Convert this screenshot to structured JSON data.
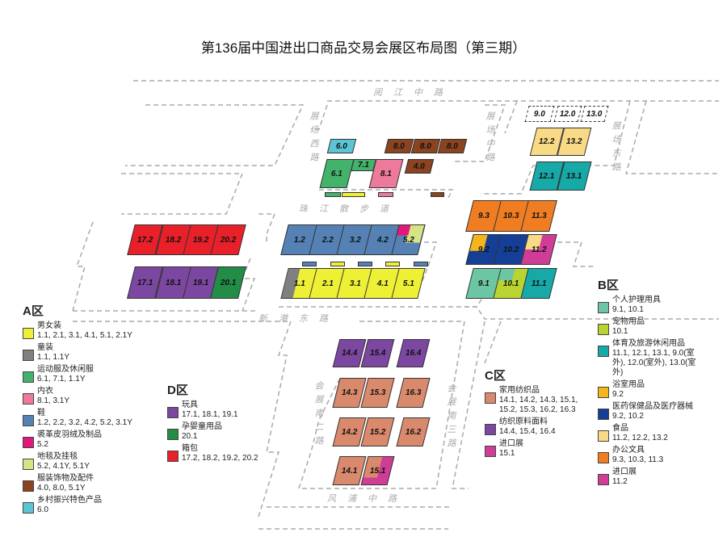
{
  "title": "第136届中国进出口商品交易会展区布局图（第三期）",
  "roads": {
    "north": "阅江中路",
    "west": "展场西路",
    "middle": "展场中路",
    "east": "展场东路",
    "promenade": "珠江散步道",
    "xingang": "新港东路",
    "south2": "会展南二路",
    "south3": "会展南三路",
    "fengpu": "风浦中路"
  },
  "halls": [
    {
      "label": "6.0",
      "colors": [
        "#5bc5d6"
      ]
    },
    {
      "label": "6.1",
      "colors": [
        "#43b26b"
      ]
    },
    {
      "label": "7.1",
      "colors": [
        "#43b26b"
      ]
    },
    {
      "label": "8.1",
      "colors": [
        "#ee7a9b"
      ]
    },
    {
      "label": "8.0",
      "colors": [
        "#8b4320"
      ]
    },
    {
      "label": "8.0",
      "colors": [
        "#8b4320"
      ]
    },
    {
      "label": "8.0",
      "colors": [
        "#8b4320"
      ]
    },
    {
      "label": "4.0",
      "colors": [
        "#8b4320"
      ]
    },
    {
      "label": "1.2",
      "colors": [
        "#5581b5"
      ]
    },
    {
      "label": "2.2",
      "colors": [
        "#5581b5"
      ]
    },
    {
      "label": "3.2",
      "colors": [
        "#5581b5"
      ]
    },
    {
      "label": "4.2",
      "colors": [
        "#5581b5"
      ]
    },
    {
      "label": "5.2",
      "colors": [
        "#5581b5",
        "#e2187a",
        "#d6e484"
      ]
    },
    {
      "label": "1.1",
      "colors": [
        "#808080",
        "#eef035"
      ]
    },
    {
      "label": "2.1",
      "colors": [
        "#eef035"
      ]
    },
    {
      "label": "3.1",
      "colors": [
        "#eef035"
      ]
    },
    {
      "label": "4.1",
      "colors": [
        "#eef035"
      ]
    },
    {
      "label": "5.1",
      "colors": [
        "#eef035"
      ]
    },
    {
      "label": "17.2",
      "colors": [
        "#e8202a"
      ]
    },
    {
      "label": "18.2",
      "colors": [
        "#e8202a"
      ]
    },
    {
      "label": "19.2",
      "colors": [
        "#e8202a"
      ]
    },
    {
      "label": "20.2",
      "colors": [
        "#e8202a"
      ]
    },
    {
      "label": "17.1",
      "colors": [
        "#7b47a0"
      ]
    },
    {
      "label": "18.1",
      "colors": [
        "#7b47a0"
      ]
    },
    {
      "label": "19.1",
      "colors": [
        "#7b47a0"
      ]
    },
    {
      "label": "20.1",
      "colors": [
        "#238d47"
      ]
    },
    {
      "label": "9.0",
      "colors": [
        "dashed"
      ]
    },
    {
      "label": "12.0",
      "colors": [
        "dashed"
      ]
    },
    {
      "label": "13.0",
      "colors": [
        "dashed"
      ]
    },
    {
      "label": "12.2",
      "colors": [
        "#f8d985"
      ]
    },
    {
      "label": "13.2",
      "colors": [
        "#f8d985"
      ]
    },
    {
      "label": "12.1",
      "colors": [
        "#17a9a8"
      ]
    },
    {
      "label": "13.1",
      "colors": [
        "#17a9a8"
      ]
    },
    {
      "label": "9.3",
      "colors": [
        "#f07d22"
      ]
    },
    {
      "label": "10.3",
      "colors": [
        "#f07d22"
      ]
    },
    {
      "label": "11.3",
      "colors": [
        "#f07d22"
      ]
    },
    {
      "label": "9.2",
      "colors": [
        "#153f96",
        "#f5b61c"
      ]
    },
    {
      "label": "10.2",
      "colors": [
        "#153f96"
      ]
    },
    {
      "label": "11.2",
      "colors": [
        "#cf3d96",
        "#f8d985"
      ]
    },
    {
      "label": "9.1",
      "colors": [
        "#6cc6a4"
      ]
    },
    {
      "label": "10.1",
      "colors": [
        "#b9d431",
        "#6cc6a4"
      ]
    },
    {
      "label": "11.1",
      "colors": [
        "#17a9a8"
      ]
    },
    {
      "label": "14.4",
      "colors": [
        "#7b47a0"
      ]
    },
    {
      "label": "15.4",
      "colors": [
        "#7b47a0"
      ]
    },
    {
      "label": "16.4",
      "colors": [
        "#7b47a0"
      ]
    },
    {
      "label": "14.3",
      "colors": [
        "#da8a6c"
      ]
    },
    {
      "label": "15.3",
      "colors": [
        "#da8a6c"
      ]
    },
    {
      "label": "16.3",
      "colors": [
        "#da8a6c"
      ]
    },
    {
      "label": "14.2",
      "colors": [
        "#da8a6c"
      ]
    },
    {
      "label": "15.2",
      "colors": [
        "#da8a6c"
      ]
    },
    {
      "label": "16.2",
      "colors": [
        "#da8a6c"
      ]
    },
    {
      "label": "14.1",
      "colors": [
        "#da8a6c"
      ]
    },
    {
      "label": "15.1",
      "colors": [
        "#cf3d96",
        "#da8a6c"
      ]
    }
  ],
  "legend": {
    "A": {
      "title": "A区",
      "items": [
        {
          "name": "男女装",
          "halls": "1.1, 2.1, 3.1, 4.1, 5.1, 2.1Y",
          "color": "#eef035"
        },
        {
          "name": "童装",
          "halls": "1.1, 1.1Y",
          "color": "#808080"
        },
        {
          "name": "运动服及休闲服",
          "halls": "6.1, 7.1, 1.1Y",
          "color": "#43b26b"
        },
        {
          "name": "内衣",
          "halls": "8.1, 3.1Y",
          "color": "#ee7a9b"
        },
        {
          "name": "鞋",
          "halls": "1.2, 2.2, 3.2, 4.2, 5.2, 3.1Y",
          "color": "#5581b5"
        },
        {
          "name": "裘革皮羽绒及制品",
          "halls": "5.2",
          "color": "#e2187a"
        },
        {
          "name": "地毯及挂毯",
          "halls": "5.2, 4.1Y, 5.1Y",
          "color": "#d6e484"
        },
        {
          "name": "服装饰物及配件",
          "halls": "4.0, 8.0, 5.1Y",
          "color": "#8b4320"
        },
        {
          "name": "乡村振兴特色产品",
          "halls": "6.0",
          "color": "#5bc5d6"
        }
      ]
    },
    "D": {
      "title": "D区",
      "items": [
        {
          "name": "玩具",
          "halls": "17.1, 18.1, 19.1",
          "color": "#7b47a0"
        },
        {
          "name": "孕婴童用品",
          "halls": "20.1",
          "color": "#238d47"
        },
        {
          "name": "箱包",
          "halls": "17.2, 18.2, 19.2, 20.2",
          "color": "#e8202a"
        }
      ]
    },
    "C": {
      "title": "C区",
      "items": [
        {
          "name": "家用纺织品",
          "halls": "14.1, 14.2, 14.3, 15.1, 15.2, 15.3, 16.2, 16.3",
          "color": "#da8a6c"
        },
        {
          "name": "纺织原料面料",
          "halls": "14.4, 15.4, 16.4",
          "color": "#7b47a0"
        },
        {
          "name": "进口展",
          "halls": "15.1",
          "color": "#cf3d96"
        }
      ]
    },
    "B": {
      "title": "B区",
      "items": [
        {
          "name": "个人护理用具",
          "halls": "9.1, 10.1",
          "color": "#6cc6a4"
        },
        {
          "name": "宠物用品",
          "halls": "10.1",
          "color": "#b9d431"
        },
        {
          "name": "体育及旅游休闲用品",
          "halls": "11.1, 12.1, 13.1, 9.0(室外), 12.0(室外), 13.0(室外)",
          "color": "#17a9a8"
        },
        {
          "name": "浴室用品",
          "halls": "9.2",
          "color": "#f5b61c"
        },
        {
          "name": "医药保健品及医疗器械",
          "halls": "9.2, 10.2",
          "color": "#153f96"
        },
        {
          "name": "食品",
          "halls": "11.2, 12.2, 13.2",
          "color": "#f8d985"
        },
        {
          "name": "办公文具",
          "halls": "9.3, 10.3, 11.3",
          "color": "#f07d22"
        },
        {
          "name": "进口展",
          "halls": "11.2",
          "color": "#cf3d96"
        }
      ]
    }
  }
}
